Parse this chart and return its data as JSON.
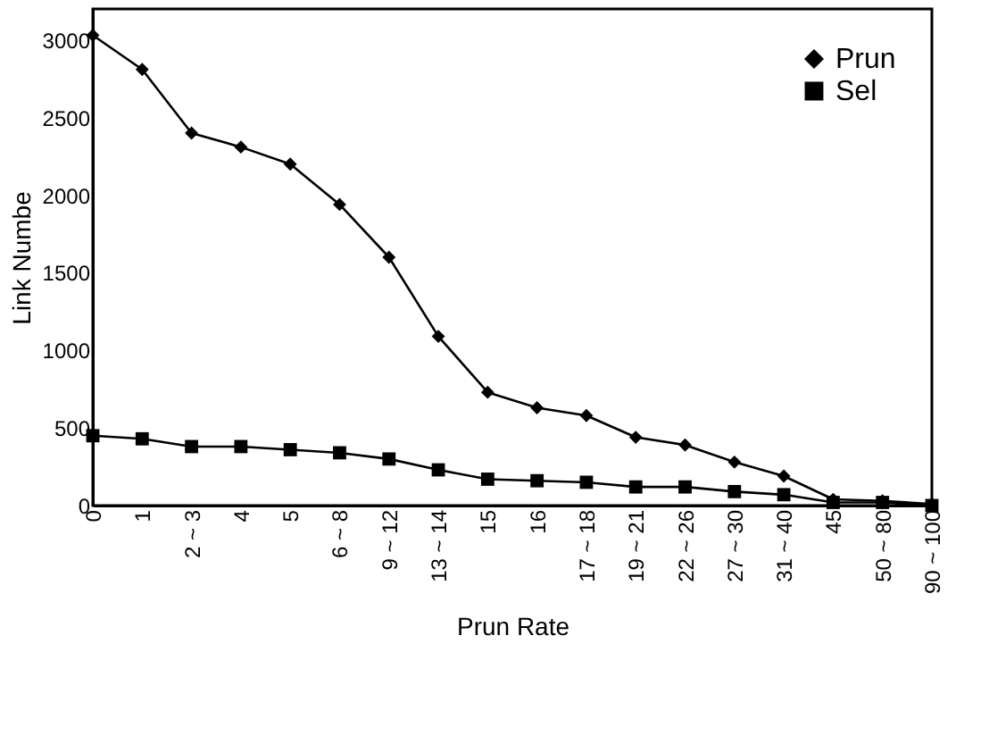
{
  "chart_data": {
    "type": "line",
    "xlabel": "Prun Rate",
    "ylabel": "Link Numbe",
    "categories": [
      "0",
      "1",
      "2 ~ 3",
      "4",
      "5",
      "6 ~ 8",
      "9 ~ 12",
      "13 ~ 14",
      "15",
      "16",
      "17 ~ 18",
      "19 ~ 21",
      "22 ~ 26",
      "27 ~ 30",
      "31 ~ 40",
      "45",
      "50 ~ 80",
      "90 ~ 100"
    ],
    "series": [
      {
        "name": "Prun",
        "color": "#000000",
        "marker": "diamond",
        "values": [
          3030,
          2810,
          2400,
          2310,
          2200,
          1940,
          1600,
          1090,
          730,
          630,
          580,
          440,
          390,
          280,
          190,
          40,
          30,
          10
        ]
      },
      {
        "name": "Sel",
        "color": "#000000",
        "marker": "square",
        "values": [
          450,
          430,
          380,
          380,
          360,
          340,
          300,
          230,
          170,
          160,
          150,
          120,
          120,
          90,
          70,
          20,
          20,
          0
        ]
      }
    ],
    "ylim": [
      0,
      3200
    ],
    "yticks": [
      0,
      500,
      1000,
      1500,
      2000,
      2500,
      3000
    ],
    "grid": false,
    "legend": "top right",
    "line_style": "solid"
  }
}
